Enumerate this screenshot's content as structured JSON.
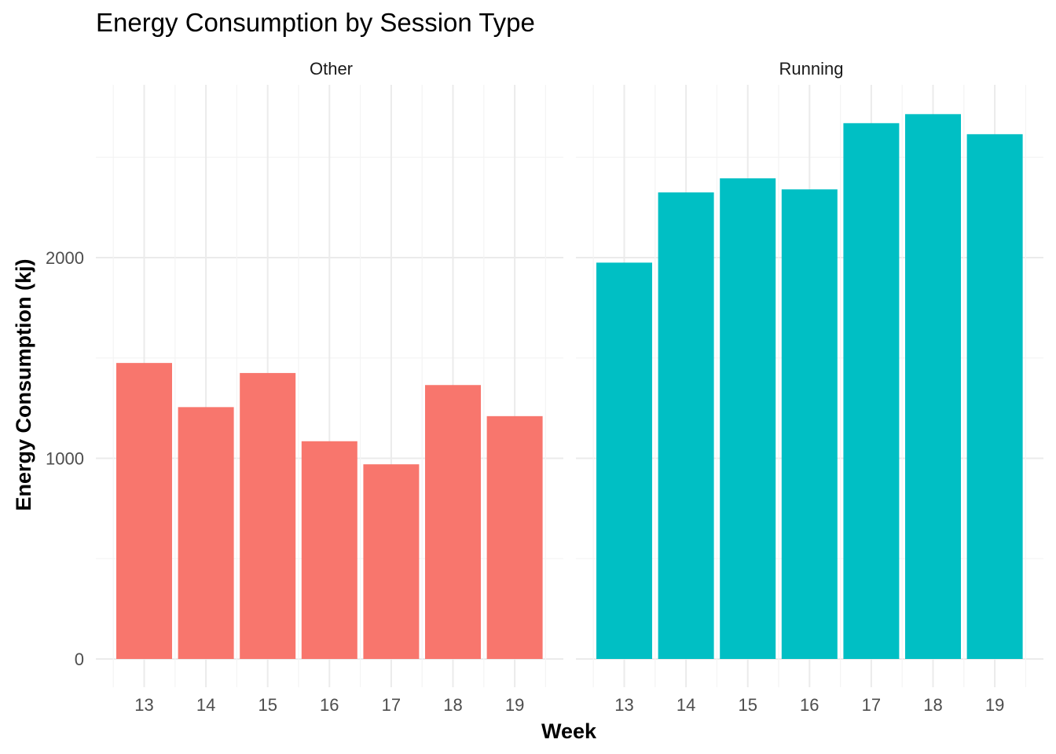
{
  "chart_data": {
    "type": "bar",
    "title": "Energy Consumption by Session Type",
    "xlabel": "Week",
    "ylabel": "Energy Consumption (kj)",
    "categories": [
      "13",
      "14",
      "15",
      "16",
      "17",
      "18",
      "19"
    ],
    "y_ticks": [
      "0",
      "1000",
      "2000"
    ],
    "ylim": [
      0,
      2800
    ],
    "grid": true,
    "legend": "none",
    "facets": [
      {
        "label": "Other",
        "color": "#F8766D",
        "values": [
          1475,
          1255,
          1425,
          1085,
          970,
          1365,
          1210
        ]
      },
      {
        "label": "Running",
        "color": "#00BFC4",
        "values": [
          1975,
          2325,
          2395,
          2340,
          2670,
          2715,
          2615
        ]
      }
    ]
  }
}
